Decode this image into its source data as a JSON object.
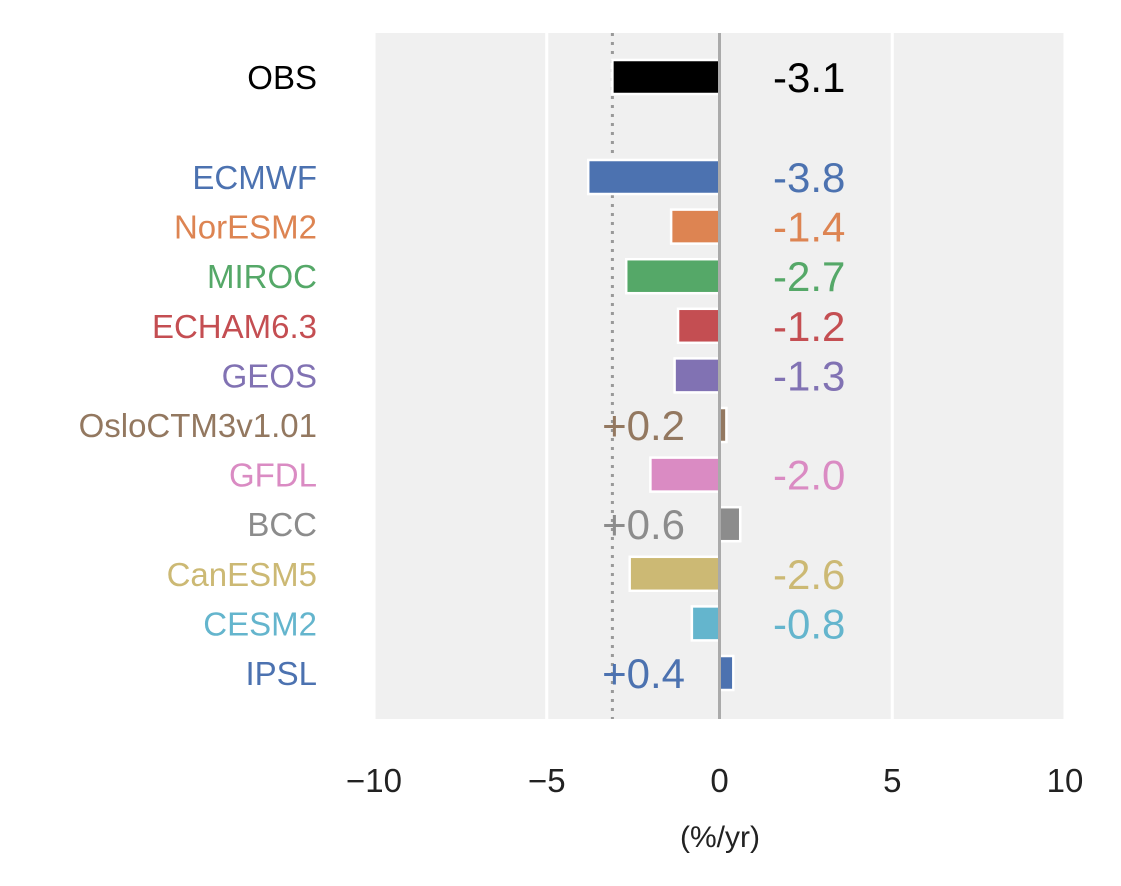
{
  "chart_data": {
    "type": "bar",
    "orientation": "horizontal",
    "title": "",
    "xlabel": "(%/yr)",
    "ylabel": "",
    "xlim": [
      -10,
      10
    ],
    "xticks": [
      -10,
      -5,
      0,
      5,
      10
    ],
    "xtick_labels": [
      "−10",
      "−5",
      "0",
      "5",
      "10"
    ],
    "grid": true,
    "reference_line": {
      "x": -3.1,
      "style": "dotted",
      "color": "#999999"
    },
    "zero_line": {
      "x": 0,
      "color": "#aaaaaa"
    },
    "categories": [
      "OBS",
      "ECMWF",
      "NorESM2",
      "MIROC",
      "ECHAM6.3",
      "GEOS",
      "OsloCTM3v1.01",
      "GFDL",
      "BCC",
      "CanESM5",
      "CESM2",
      "IPSL"
    ],
    "values": [
      -3.1,
      -3.8,
      -1.4,
      -2.7,
      -1.2,
      -1.3,
      0.2,
      -2.0,
      0.6,
      -2.6,
      -0.8,
      0.4
    ],
    "value_labels": [
      "-3.1",
      "-3.8",
      "-1.4",
      "-2.7",
      "-1.2",
      "-1.3",
      "+0.2",
      "-2.0",
      "+0.6",
      "-2.6",
      "-0.8",
      "+0.4"
    ],
    "colors": [
      "#000000",
      "#4c72b0",
      "#dd8452",
      "#55a868",
      "#c44e52",
      "#8172b3",
      "#937860",
      "#da8bc3",
      "#8c8c8c",
      "#ccb974",
      "#64b5cd",
      "#4c72b0"
    ]
  }
}
